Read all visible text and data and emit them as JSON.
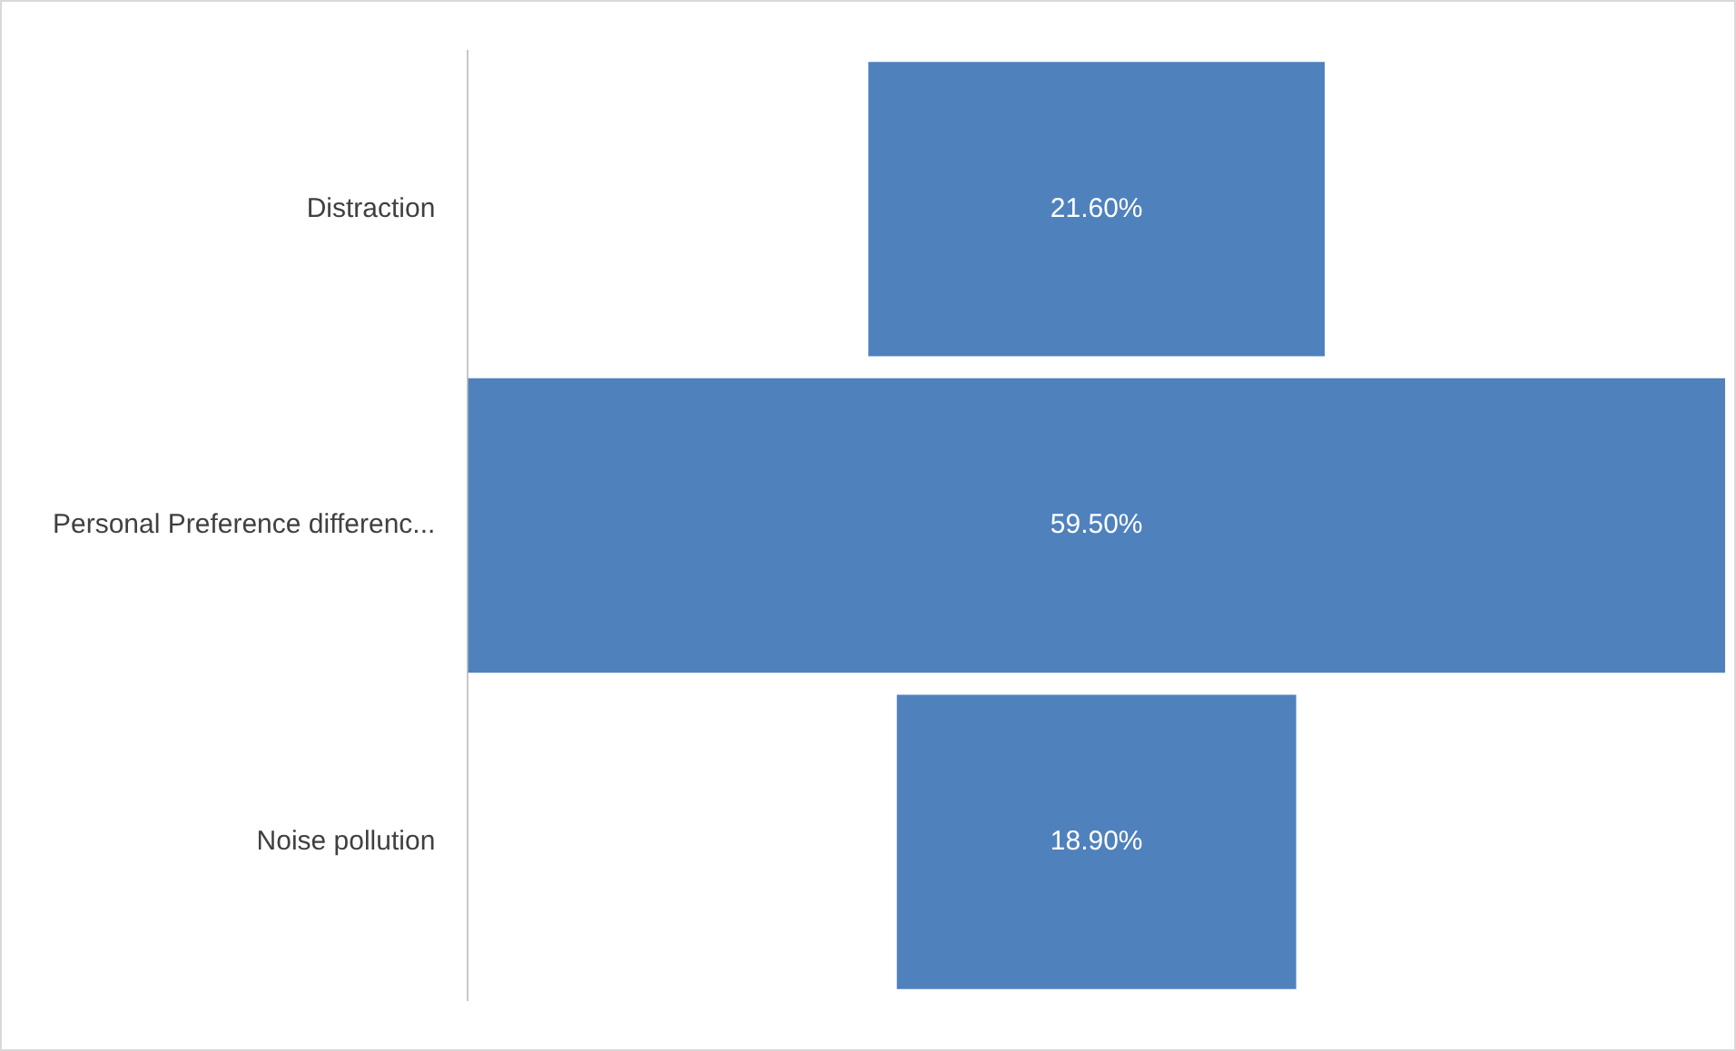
{
  "chart_data": {
    "type": "other",
    "categories": [
      "Distraction",
      "Personal Preference differenc...",
      "Noise pollution"
    ],
    "values": [
      21.6,
      59.5,
      18.9
    ],
    "value_labels": [
      "21.60%",
      "59.50%",
      "18.90%"
    ],
    "color": "#4f81bd"
  }
}
